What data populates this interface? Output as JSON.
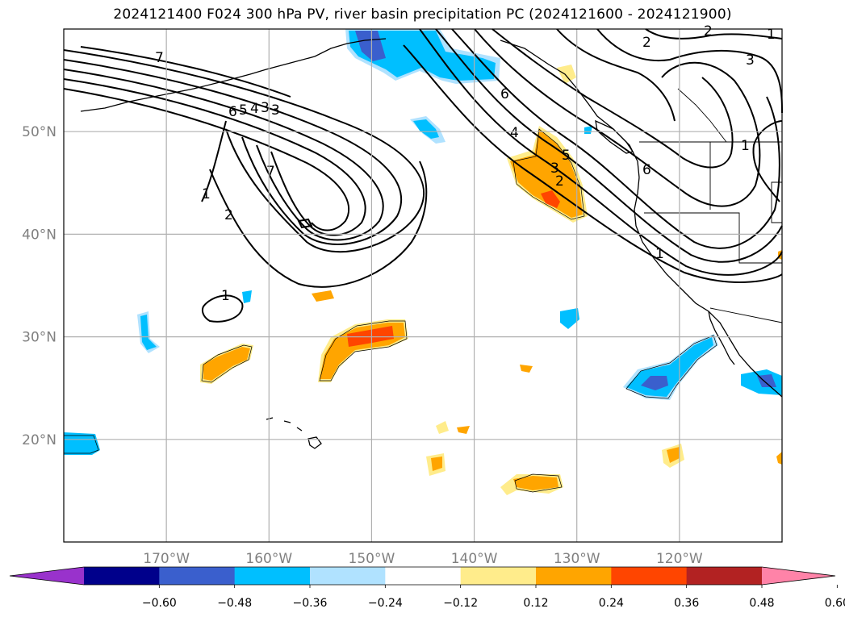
{
  "title": "2024121400 F024 300 hPa PV, river basin precipitation PC (2024121600 - 2024121900)",
  "map": {
    "lon_range": [
      -180,
      -110
    ],
    "lat_range": [
      10,
      60
    ],
    "lon_ticks": [
      {
        "value": -170,
        "label": "170°W"
      },
      {
        "value": -160,
        "label": "160°W"
      },
      {
        "value": -150,
        "label": "150°W"
      },
      {
        "value": -140,
        "label": "140°W"
      },
      {
        "value": -130,
        "label": "130°W"
      },
      {
        "value": -120,
        "label": "120°W"
      }
    ],
    "lat_ticks": [
      {
        "value": 20,
        "label": "20°N"
      },
      {
        "value": 30,
        "label": "30°N"
      },
      {
        "value": 40,
        "label": "40°N"
      },
      {
        "value": 50,
        "label": "50°N"
      }
    ],
    "gridlines": true,
    "pv_contour_labels": [
      "1",
      "2",
      "3",
      "4",
      "5",
      "6",
      "7"
    ]
  },
  "colorbar": {
    "extend": "both",
    "colors": [
      "#9932cc",
      "#00008b",
      "#3a5fcd",
      "#00bfff",
      "#b0e2ff",
      "#ffffff",
      "#ffec8b",
      "#ffa500",
      "#ff4500",
      "#b22222",
      "#ff83a8"
    ],
    "tick_labels": [
      "−0.60",
      "−0.48",
      "−0.36",
      "−0.24",
      "−0.12",
      "0.12",
      "0.24",
      "0.36",
      "0.48",
      "0.60"
    ]
  }
}
